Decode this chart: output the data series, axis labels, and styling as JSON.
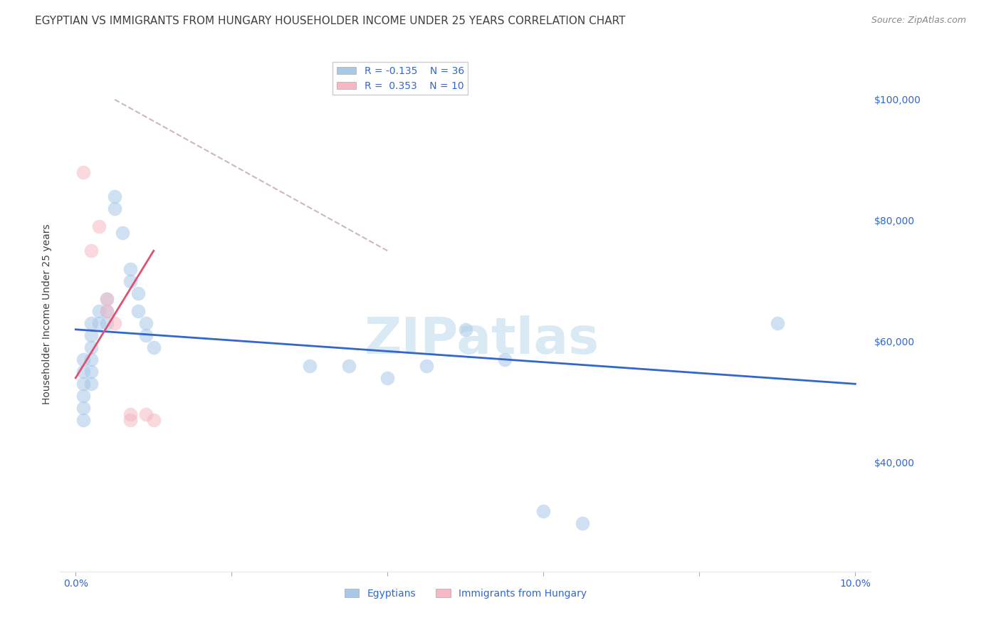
{
  "title": "EGYPTIAN VS IMMIGRANTS FROM HUNGARY HOUSEHOLDER INCOME UNDER 25 YEARS CORRELATION CHART",
  "source": "Source: ZipAtlas.com",
  "ylabel": "Householder Income Under 25 years",
  "watermark": "ZIPatlas",
  "xlim": [
    -0.002,
    0.102
  ],
  "ylim": [
    22000,
    107000
  ],
  "yticks": [
    40000,
    60000,
    80000,
    100000
  ],
  "ytick_labels": [
    "$40,000",
    "$60,000",
    "$80,000",
    "$100,000"
  ],
  "xticks": [
    0.0,
    0.02,
    0.04,
    0.06,
    0.08,
    0.1
  ],
  "xtick_labels": [
    "0.0%",
    "",
    "",
    "",
    "",
    "10.0%"
  ],
  "blue_R": "-0.135",
  "blue_N": "36",
  "pink_R": "0.353",
  "pink_N": "10",
  "blue_scatter": [
    [
      0.001,
      57000
    ],
    [
      0.001,
      55000
    ],
    [
      0.001,
      53000
    ],
    [
      0.001,
      51000
    ],
    [
      0.001,
      49000
    ],
    [
      0.001,
      47000
    ],
    [
      0.002,
      63000
    ],
    [
      0.002,
      61000
    ],
    [
      0.002,
      59000
    ],
    [
      0.002,
      57000
    ],
    [
      0.002,
      55000
    ],
    [
      0.002,
      53000
    ],
    [
      0.003,
      65000
    ],
    [
      0.003,
      63000
    ],
    [
      0.004,
      67000
    ],
    [
      0.004,
      65000
    ],
    [
      0.004,
      63000
    ],
    [
      0.005,
      84000
    ],
    [
      0.005,
      82000
    ],
    [
      0.006,
      78000
    ],
    [
      0.007,
      72000
    ],
    [
      0.007,
      70000
    ],
    [
      0.008,
      68000
    ],
    [
      0.008,
      65000
    ],
    [
      0.009,
      63000
    ],
    [
      0.009,
      61000
    ],
    [
      0.01,
      59000
    ],
    [
      0.03,
      56000
    ],
    [
      0.035,
      56000
    ],
    [
      0.04,
      54000
    ],
    [
      0.045,
      56000
    ],
    [
      0.05,
      62000
    ],
    [
      0.055,
      57000
    ],
    [
      0.065,
      30000
    ],
    [
      0.09,
      63000
    ],
    [
      0.06,
      32000
    ]
  ],
  "pink_scatter": [
    [
      0.001,
      88000
    ],
    [
      0.002,
      75000
    ],
    [
      0.003,
      79000
    ],
    [
      0.004,
      67000
    ],
    [
      0.004,
      65000
    ],
    [
      0.005,
      63000
    ],
    [
      0.007,
      48000
    ],
    [
      0.007,
      47000
    ],
    [
      0.009,
      48000
    ],
    [
      0.01,
      47000
    ]
  ],
  "blue_line_x": [
    0.0,
    0.1
  ],
  "blue_line_y": [
    62000,
    53000
  ],
  "pink_line_x": [
    0.0,
    0.01
  ],
  "pink_line_y": [
    54000,
    75000
  ],
  "dashed_line_x": [
    0.005,
    0.04
  ],
  "dashed_line_y": [
    100000,
    75000
  ],
  "blue_color": "#a8c8e8",
  "pink_color": "#f5b8c4",
  "blue_line_color": "#3366cc",
  "pink_line_color": "#e05070",
  "dashed_color": "#d0b8b8",
  "background_color": "#ffffff",
  "grid_color": "#cccccc",
  "title_color": "#404040",
  "ylabel_color": "#404040",
  "right_tick_color": "#3366cc",
  "watermark_color": "#daeaf5",
  "scatter_size": 200,
  "scatter_alpha": 0.55,
  "title_fontsize": 11,
  "source_fontsize": 9,
  "legend_fontsize": 10,
  "ylabel_fontsize": 10,
  "tick_fontsize": 10,
  "watermark_fontsize": 52
}
